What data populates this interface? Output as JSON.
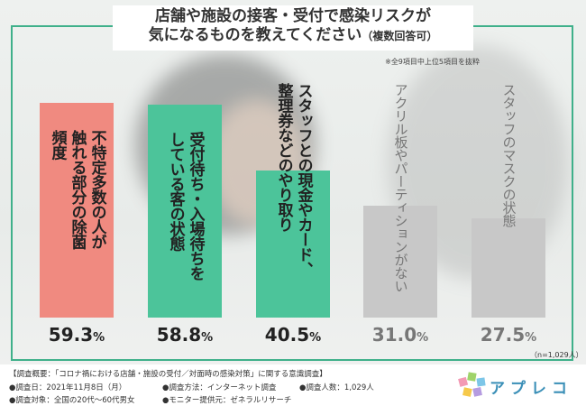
{
  "title": {
    "line1": "店舗や施設の接客・受付で感染リスクが",
    "line2": "気になるものを教えてください",
    "suffix": "（複数回答可）"
  },
  "note": "※全9項目中上位5項目を抜粋",
  "colors": {
    "frame": "#3fb08a",
    "bar1": "#f08a80",
    "bar2": "#4cc49a",
    "bar3": "#4cc49a",
    "bar4": "#c8c8c8",
    "bar5": "#c8c8c8",
    "text_dark": "#222222",
    "text_gray": "#777777"
  },
  "chart_data": {
    "type": "bar",
    "categories": [
      "不特定多数の人が触れる部分の除菌頻度",
      "受付待ち・入場待ちをしている客の状態",
      "スタッフとの現金やカード、整理券などのやり取り",
      "アクリル板やパーティションがない",
      "スタッフのマスクの状態"
    ],
    "label_columns": [
      [
        "触",
        "不特定多数の人が"
      ],
      [
        "れる部分の除菌頻度"
      ],
      []
    ],
    "values": [
      59.3,
      58.8,
      40.5,
      31.0,
      27.5
    ],
    "value_labels": [
      {
        "num": "59.3",
        "unit": "%"
      },
      {
        "num": "58.8",
        "unit": "%"
      },
      {
        "num": "40.5",
        "unit": "%"
      },
      {
        "num": "31.0",
        "unit": "%"
      },
      {
        "num": "27.5",
        "unit": "%"
      }
    ],
    "ylim": [
      0,
      65
    ],
    "sample_note": "（n=1,029人）"
  },
  "bar_text": [
    [
      "不特定多数の人が",
      "触れる部分の除菌",
      "頻度"
    ],
    [
      "受付待ち・入場待ちを",
      "している客の状態"
    ],
    [
      "スタッフとの現金やカード、",
      "整理券などのやり取り"
    ],
    [
      "アクリル板やパーティションがない"
    ],
    [
      "スタッフのマスクの状態"
    ]
  ],
  "footer": {
    "line1": "【調査概要：「コロナ禍における店舗・施設の受付／対面時の感染対策」に関する意識調査】",
    "date": "●調査日：2021年11月8日（月）",
    "method": "●調査方法：インターネット調査",
    "count": "●調査人数：1,029人",
    "target": "●調査対象：全国の20代～60代男女",
    "provider": "●モニター提供元：ゼネラルリサーチ"
  },
  "logo": {
    "text": "アプレコ"
  }
}
